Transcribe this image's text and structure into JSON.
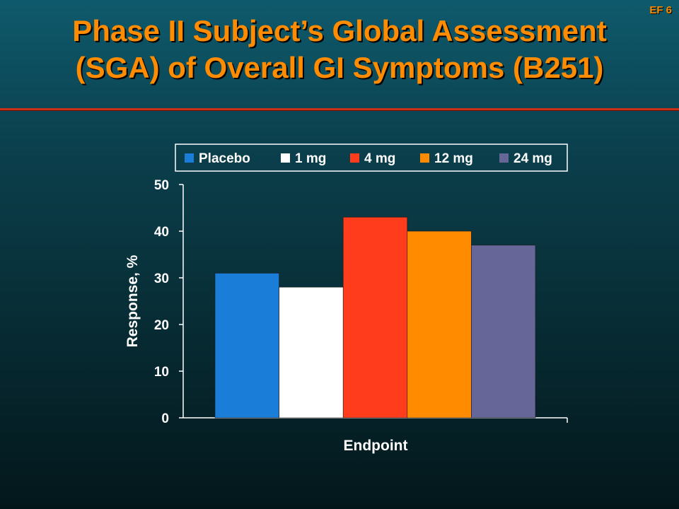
{
  "slide": {
    "id_label": "EF 6",
    "title_line1": "Phase II Subject’s Global Assessment",
    "title_line2": "(SGA) of Overall GI Symptoms (B251)"
  },
  "colors": {
    "title": "#ff8c00",
    "rule": "#c83018",
    "placebo": "#1a7ed8",
    "1_mg": "#ffffff",
    "4_mg": "#ff3c1c",
    "12_mg": "#ff8c00",
    "24_mg": "#666699"
  },
  "chart_data": {
    "type": "bar",
    "title": "",
    "xlabel": "Endpoint",
    "ylabel": "Response, %",
    "ylim": [
      0,
      50
    ],
    "yticks": [
      0,
      10,
      20,
      30,
      40,
      50
    ],
    "categories": [
      "Endpoint"
    ],
    "legend_position": "top",
    "grid": false,
    "series": [
      {
        "name": "Placebo",
        "values": [
          31
        ],
        "color": "#1a7ed8"
      },
      {
        "name": "1 mg",
        "values": [
          28
        ],
        "color": "#ffffff"
      },
      {
        "name": "4 mg",
        "values": [
          43
        ],
        "color": "#ff3c1c"
      },
      {
        "name": "12 mg",
        "values": [
          40
        ],
        "color": "#ff8c00"
      },
      {
        "name": "24 mg",
        "values": [
          37
        ],
        "color": "#666699"
      }
    ]
  }
}
